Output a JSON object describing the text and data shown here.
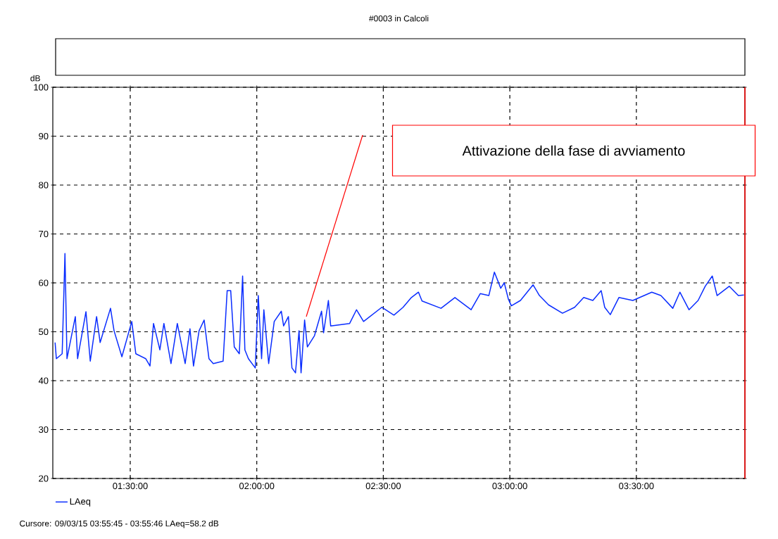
{
  "chart_data": {
    "type": "line",
    "title": "#0003 in Calcoli",
    "ylabel": "dB",
    "x": [
      1.203,
      1.208,
      1.231,
      1.242,
      1.25,
      1.283,
      1.292,
      1.325,
      1.342,
      1.367,
      1.381,
      1.422,
      1.436,
      1.467,
      1.506,
      1.522,
      1.561,
      1.578,
      1.592,
      1.617,
      1.633,
      1.661,
      1.686,
      1.717,
      1.736,
      1.75,
      1.772,
      1.792,
      1.811,
      1.828,
      1.867,
      1.883,
      1.897,
      1.911,
      1.931,
      1.944,
      1.953,
      1.967,
      1.994,
      2.006,
      2.019,
      2.028,
      2.047,
      2.069,
      2.097,
      2.106,
      2.125,
      2.139,
      2.153,
      2.167,
      2.175,
      2.189,
      2.2,
      2.228,
      2.256,
      2.264,
      2.283,
      2.292,
      2.367,
      2.394,
      2.422,
      2.494,
      2.542,
      2.578,
      2.611,
      2.639,
      2.653,
      2.728,
      2.783,
      2.847,
      2.883,
      2.917,
      2.939,
      2.964,
      2.978,
      2.994,
      3.006,
      3.042,
      3.092,
      3.117,
      3.153,
      3.208,
      3.256,
      3.292,
      3.328,
      3.361,
      3.375,
      3.397,
      3.431,
      3.486,
      3.561,
      3.597,
      3.644,
      3.672,
      3.708,
      3.744,
      3.772,
      3.8,
      3.819,
      3.867,
      3.903,
      3.925
    ],
    "series": [
      {
        "name": "LAeq",
        "color": "#0a2dff",
        "values": [
          47.8,
          44.5,
          45.5,
          66,
          44.5,
          53.1,
          44.5,
          54.1,
          44,
          53.1,
          47.8,
          54.8,
          50.2,
          44.9,
          52.1,
          45.5,
          44.5,
          43,
          51.7,
          46.3,
          51.7,
          43.5,
          51.7,
          43.5,
          50.6,
          43,
          50.2,
          52.4,
          44.5,
          43.5,
          44,
          58.4,
          58.4,
          46.9,
          45.5,
          61.4,
          46.3,
          44.5,
          42.6,
          57.4,
          44.5,
          54.5,
          43.5,
          52.1,
          54.2,
          51.2,
          53.1,
          42.6,
          41.6,
          50.2,
          41.6,
          52.4,
          46.9,
          49.2,
          54.2,
          49.8,
          56.4,
          51.2,
          51.7,
          54.5,
          52.1,
          55,
          53.4,
          55,
          57,
          58.1,
          56.3,
          54.8,
          57,
          54.5,
          57.8,
          57.4,
          62.2,
          58.9,
          60,
          56.7,
          55.3,
          56.4,
          59.6,
          57.4,
          55.5,
          53.8,
          55,
          57,
          56.4,
          58.4,
          55,
          53.5,
          57,
          56.4,
          58.1,
          57.4,
          54.8,
          58.1,
          54.5,
          56.4,
          59.3,
          61.4,
          57.4,
          59.3,
          57.4,
          57.5
        ]
      }
    ],
    "xlim": [
      1.194,
      3.929
    ],
    "xticks": [
      {
        "value": 1.5,
        "label": "01:30:00"
      },
      {
        "value": 2.0,
        "label": "02:00:00"
      },
      {
        "value": 2.5,
        "label": "02:30:00"
      },
      {
        "value": 3.0,
        "label": "03:00:00"
      },
      {
        "value": 3.5,
        "label": "03:30:00"
      }
    ],
    "ylim": [
      20,
      100
    ],
    "yticks": [
      20,
      30,
      40,
      50,
      60,
      70,
      80,
      90,
      100
    ],
    "grid": true,
    "legend": "bottom",
    "marker": "none",
    "line_style": "solid",
    "ref_lines": [
      {
        "axis": "x",
        "value": 3.929,
        "color": "#ff0000"
      }
    ],
    "annotations": [
      "Attivazione della fase di avviamento",
      "Cursore: 09/03/15 03:55:45 - 03:55:46  LAeq=58.2 dB"
    ]
  }
}
